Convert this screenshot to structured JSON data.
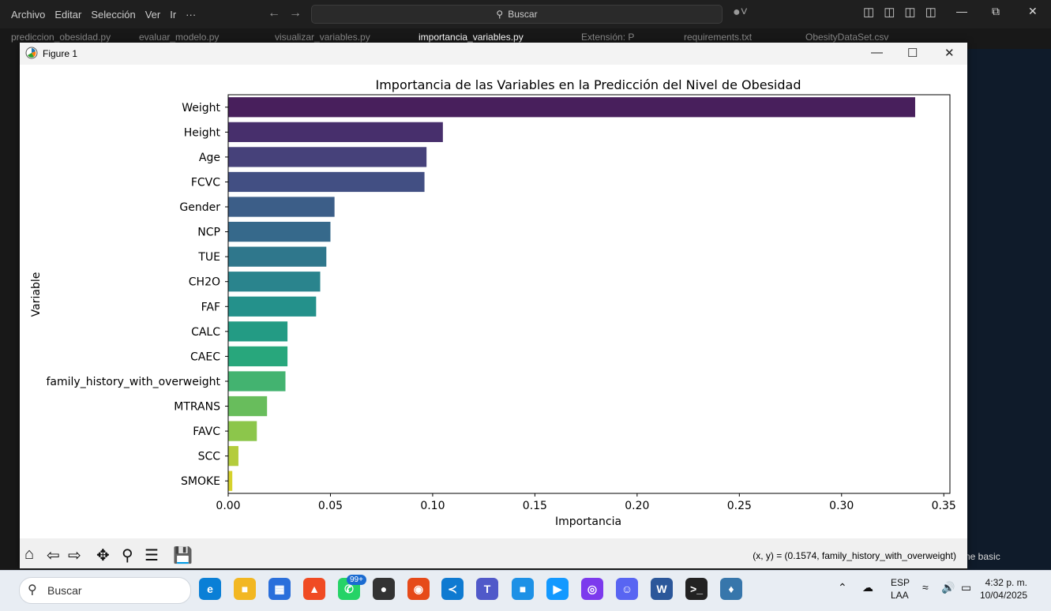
{
  "vscode": {
    "menu": [
      "Archivo",
      "Editar",
      "Selección",
      "Ver",
      "Ir",
      "···"
    ],
    "search_placeholder": "Buscar",
    "tabs": [
      {
        "label": "prediccion_obesidad.py",
        "active": false
      },
      {
        "label": "evaluar_modelo.py",
        "active": false
      },
      {
        "label": "visualizar_variables.py",
        "active": false
      },
      {
        "label": "importancia_variables.py",
        "active": true
      },
      {
        "label": "Extensión: P",
        "active": false
      },
      {
        "label": "requirements.txt",
        "active": false
      },
      {
        "label": "ObesityDataSet.csv",
        "active": false
      }
    ],
    "status_right": "ne basic"
  },
  "figure": {
    "window_title": "Figure 1",
    "coords_text": "(x, y) = (0.1574, family_history_with_overweight)"
  },
  "chart_data": {
    "type": "bar",
    "orientation": "horizontal",
    "title": "Importancia de las Variables en la Predicción del Nivel de Obesidad",
    "xlabel": "Importancia",
    "ylabel": "Variable",
    "categories": [
      "Weight",
      "Height",
      "Age",
      "FCVC",
      "Gender",
      "NCP",
      "TUE",
      "CH2O",
      "FAF",
      "CALC",
      "CAEC",
      "family_history_with_overweight",
      "MTRANS",
      "FAVC",
      "SCC",
      "SMOKE"
    ],
    "values": [
      0.336,
      0.105,
      0.097,
      0.096,
      0.052,
      0.05,
      0.048,
      0.045,
      0.043,
      0.029,
      0.029,
      0.028,
      0.019,
      0.014,
      0.005,
      0.002
    ],
    "colors": [
      "#481f5c",
      "#472f6c",
      "#46417a",
      "#424f83",
      "#3c5e88",
      "#36698b",
      "#2f778c",
      "#2a848d",
      "#24918b",
      "#239b84",
      "#28a77c",
      "#43b370",
      "#68bd5c",
      "#8cc64b",
      "#b4cc3c",
      "#d6d22c"
    ],
    "xlim": [
      0,
      0.353
    ],
    "xticks": [
      "0.00",
      "0.05",
      "0.10",
      "0.15",
      "0.20",
      "0.25",
      "0.30",
      "0.35"
    ],
    "xtick_values": [
      0,
      0.05,
      0.1,
      0.15,
      0.2,
      0.25,
      0.3,
      0.35
    ],
    "grid": false,
    "legend": "none"
  },
  "taskbar": {
    "search_label": "Buscar",
    "badge": "99+",
    "lang_top": "ESP",
    "lang_bottom": "LAA",
    "time": "4:32 p. m.",
    "date": "10/04/2025"
  }
}
